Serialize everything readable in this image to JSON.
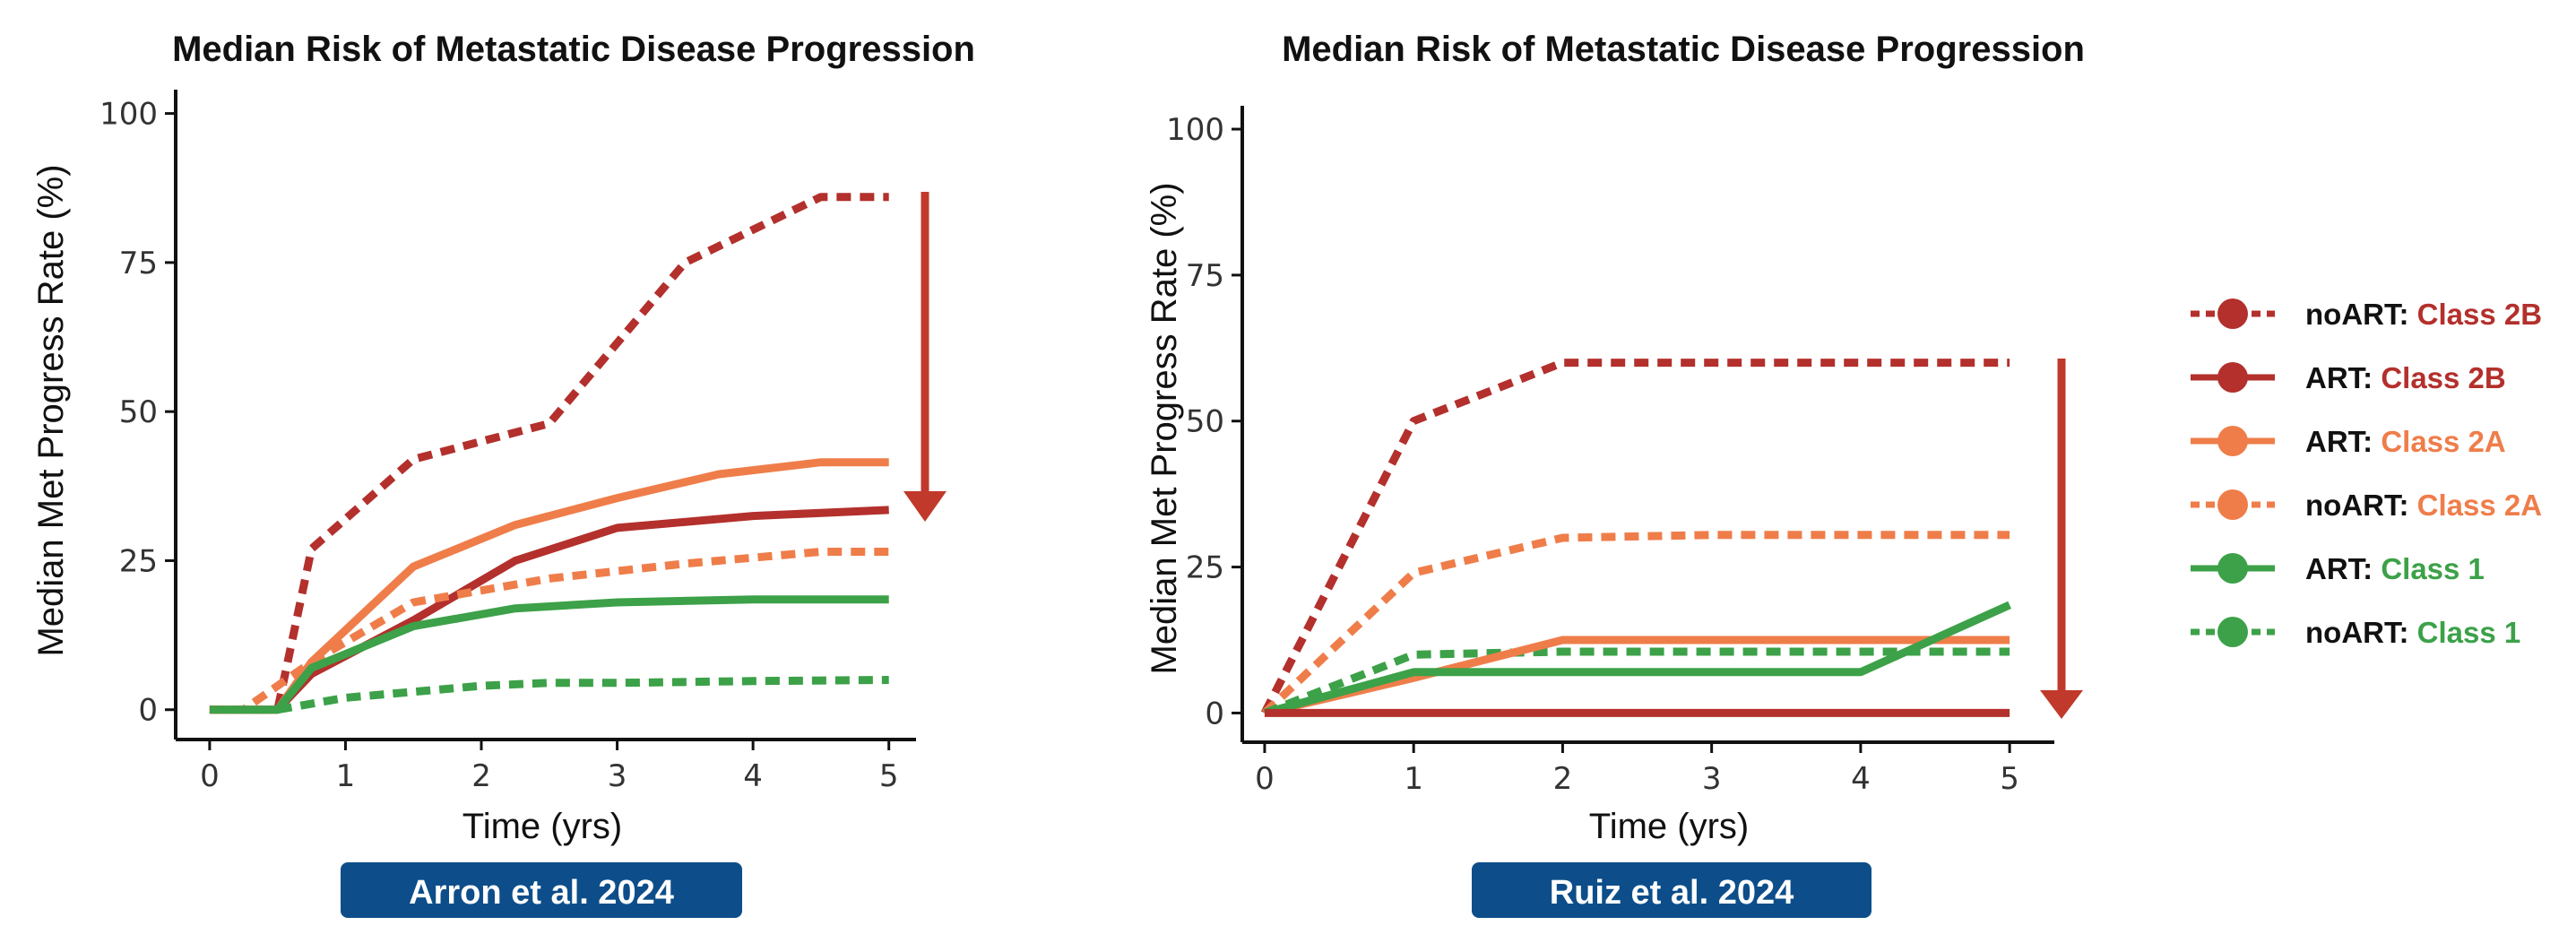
{
  "colors": {
    "class2b": "#b3302c",
    "class2a": "#ef7d4a",
    "class1": "#3ca148",
    "arrow": "#c0392b",
    "badge": "#0d4e8a"
  },
  "chart_data": [
    {
      "type": "line",
      "title": "Median Risk of Metastatic Disease Progression",
      "xlabel": "Time (yrs)",
      "ylabel": "Median Met Progress Rate (%)",
      "xlim": [
        -0.25,
        5.2
      ],
      "ylim": [
        -5,
        104
      ],
      "xticks": [
        0,
        1,
        2,
        3,
        4,
        5
      ],
      "yticks": [
        0,
        25,
        50,
        75,
        100
      ],
      "badge": "Arron et al. 2024",
      "annotation": "downward arrow",
      "series": [
        {
          "name": "noART: Class 2B",
          "colorKey": "class2b",
          "dashed": true,
          "x": [
            0,
            0.5,
            0.75,
            1.5,
            2.5,
            3.5,
            4.5,
            5
          ],
          "y": [
            0,
            0,
            27,
            42,
            48,
            75,
            86,
            86
          ]
        },
        {
          "name": "ART: Class 2B",
          "colorKey": "class2b",
          "dashed": false,
          "x": [
            0,
            0.5,
            0.75,
            1.5,
            2.25,
            3,
            4,
            5
          ],
          "y": [
            0,
            0,
            6,
            15,
            25,
            30.5,
            32.5,
            33.5
          ]
        },
        {
          "name": "ART: Class 2A",
          "colorKey": "class2a",
          "dashed": false,
          "x": [
            0,
            0.5,
            0.75,
            1.5,
            2.25,
            3,
            3.75,
            4.5,
            5
          ],
          "y": [
            0,
            0,
            8,
            24,
            31,
            35.5,
            39.5,
            41.5,
            41.5
          ]
        },
        {
          "name": "noART: Class 2A",
          "colorKey": "class2a",
          "dashed": true,
          "x": [
            0,
            0.25,
            0.75,
            1.5,
            2.5,
            3.5,
            4.5,
            5
          ],
          "y": [
            0,
            0,
            8,
            18,
            22,
            24.5,
            26.5,
            26.5
          ]
        },
        {
          "name": "ART: Class 1",
          "colorKey": "class1",
          "dashed": false,
          "x": [
            0,
            0.5,
            0.75,
            1.5,
            2.25,
            3,
            4,
            5
          ],
          "y": [
            0,
            0,
            7,
            14,
            17,
            18,
            18.5,
            18.5
          ]
        },
        {
          "name": "noART: Class 1",
          "colorKey": "class1",
          "dashed": true,
          "x": [
            0.5,
            1,
            1.5,
            2,
            2.5,
            3,
            4,
            5
          ],
          "y": [
            0,
            2,
            3,
            4,
            4.5,
            4.5,
            4.8,
            5
          ]
        }
      ]
    },
    {
      "type": "line",
      "title": "Median Risk of Metastatic Disease Progression",
      "xlabel": "Time (yrs)",
      "ylabel": "Median Met Progress Rate (%)",
      "xlim": [
        -0.15,
        5.3
      ],
      "ylim": [
        -5,
        104
      ],
      "xticks": [
        0,
        1,
        2,
        3,
        4,
        5
      ],
      "yticks": [
        0,
        25,
        50,
        75,
        100
      ],
      "badge": "Ruiz et al. 2024",
      "annotation": "downward arrow",
      "series": [
        {
          "name": "noART: Class 2B",
          "colorKey": "class2b",
          "dashed": true,
          "x": [
            0,
            1,
            2,
            3,
            4,
            5
          ],
          "y": [
            0,
            50,
            60,
            60,
            60,
            60
          ]
        },
        {
          "name": "noART: Class 2A",
          "colorKey": "class2a",
          "dashed": true,
          "x": [
            0,
            1,
            2,
            3,
            4,
            5
          ],
          "y": [
            0,
            24,
            30,
            30.5,
            30.5,
            30.5
          ]
        },
        {
          "name": "noART: Class 1",
          "colorKey": "class1",
          "dashed": true,
          "x": [
            0,
            1,
            2,
            3,
            4,
            5
          ],
          "y": [
            0,
            10,
            10.5,
            10.5,
            10.5,
            10.5
          ]
        },
        {
          "name": "ART: Class 2A",
          "colorKey": "class2a",
          "dashed": false,
          "x": [
            0,
            1,
            2,
            3,
            4,
            5
          ],
          "y": [
            0,
            6,
            12.5,
            12.5,
            12.5,
            12.5
          ]
        },
        {
          "name": "ART: Class 1",
          "colorKey": "class1",
          "dashed": false,
          "x": [
            0,
            1,
            2,
            3,
            4,
            5
          ],
          "y": [
            0,
            7,
            7,
            7,
            7,
            18.5
          ]
        },
        {
          "name": "ART: Class 2B",
          "colorKey": "class2b",
          "dashed": false,
          "x": [
            0,
            1,
            2,
            3,
            4,
            5
          ],
          "y": [
            0,
            0,
            0,
            0,
            0,
            0
          ]
        }
      ]
    }
  ],
  "legend": [
    {
      "prefix": "noART:",
      "label": "Class 2B",
      "colorKey": "class2b",
      "dashed": true
    },
    {
      "prefix": "ART:",
      "label": "Class 2B",
      "colorKey": "class2b",
      "dashed": false
    },
    {
      "prefix": "ART:",
      "label": "Class 2A",
      "colorKey": "class2a",
      "dashed": false
    },
    {
      "prefix": "noART:",
      "label": "Class 2A",
      "colorKey": "class2a",
      "dashed": true
    },
    {
      "prefix": "ART:",
      "label": "Class 1",
      "colorKey": "class1",
      "dashed": false
    },
    {
      "prefix": "noART:",
      "label": "Class 1",
      "colorKey": "class1",
      "dashed": true
    }
  ]
}
